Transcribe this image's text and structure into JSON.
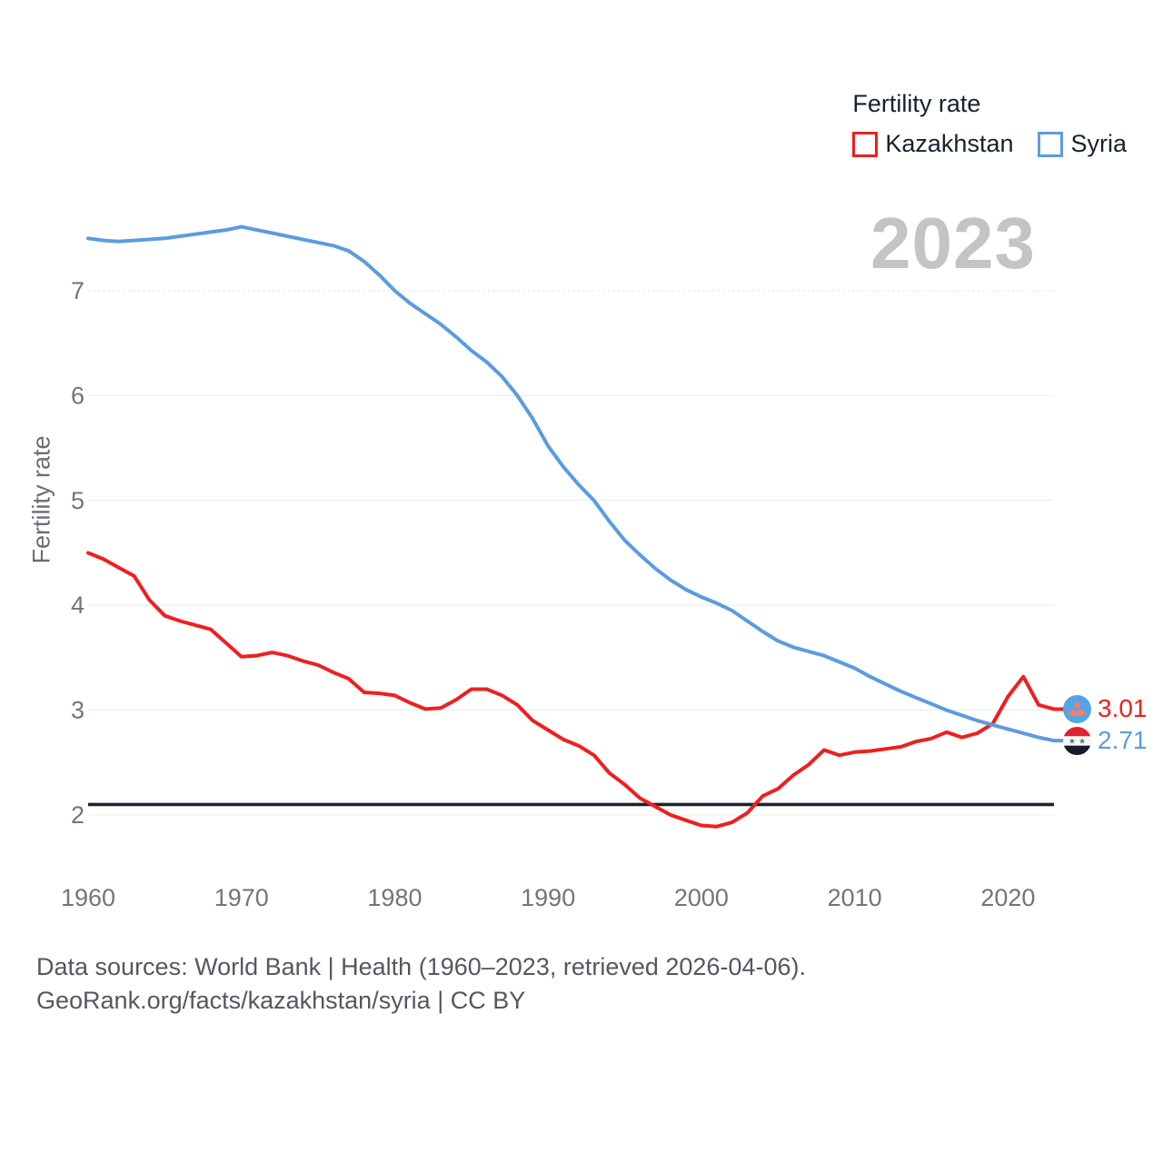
{
  "legend": {
    "title": "Fertility rate"
  },
  "footer": {
    "line1": "Data sources: World Bank | Health (1960–2023, retrieved 2026-04-06).",
    "line2": "GeoRank.org/facts/kazakhstan/syria | CC BY"
  },
  "chart_data": {
    "type": "line",
    "title": "Fertility rate",
    "ylabel": "Fertility rate",
    "watermark_year": "2023",
    "xlim": [
      1960,
      2023
    ],
    "ylim": [
      1.85,
      7.8
    ],
    "x_ticks": [
      1960,
      1970,
      1980,
      1990,
      2000,
      2010,
      2020
    ],
    "y_ticks": [
      2,
      3,
      4,
      5,
      6,
      7
    ],
    "grid": "horizontal",
    "legend_position": "top-right",
    "reference_line": {
      "value": 2.1,
      "color": "#1b2430"
    },
    "x_start": 1960,
    "x_step": 1,
    "series": [
      {
        "name": "Kazakhstan",
        "color": "#ef1f1f",
        "end_label": "3.01",
        "flag_icon": "kazakhstan-flag",
        "values": [
          4.5,
          4.44,
          4.36,
          4.28,
          4.05,
          3.9,
          3.85,
          3.81,
          3.77,
          3.64,
          3.51,
          3.52,
          3.55,
          3.52,
          3.47,
          3.43,
          3.36,
          3.3,
          3.17,
          3.16,
          3.14,
          3.07,
          3.01,
          3.02,
          3.1,
          3.2,
          3.2,
          3.14,
          3.05,
          2.9,
          2.81,
          2.72,
          2.66,
          2.57,
          2.4,
          2.29,
          2.16,
          2.08,
          2.0,
          1.95,
          1.9,
          1.89,
          1.93,
          2.02,
          2.18,
          2.25,
          2.38,
          2.48,
          2.62,
          2.57,
          2.6,
          2.61,
          2.63,
          2.65,
          2.7,
          2.73,
          2.79,
          2.74,
          2.78,
          2.87,
          3.13,
          3.32,
          3.05,
          3.01
        ]
      },
      {
        "name": "Syria",
        "color": "#5b9ce0",
        "end_label": "2.71",
        "flag_icon": "syria-flag",
        "values": [
          7.5,
          7.48,
          7.47,
          7.48,
          7.49,
          7.5,
          7.52,
          7.54,
          7.56,
          7.58,
          7.61,
          7.58,
          7.55,
          7.52,
          7.49,
          7.46,
          7.43,
          7.38,
          7.28,
          7.15,
          7.0,
          6.88,
          6.78,
          6.68,
          6.56,
          6.43,
          6.32,
          6.18,
          6.0,
          5.78,
          5.52,
          5.32,
          5.15,
          5.0,
          4.8,
          4.62,
          4.48,
          4.35,
          4.24,
          4.15,
          4.08,
          4.02,
          3.95,
          3.85,
          3.75,
          3.66,
          3.6,
          3.56,
          3.52,
          3.46,
          3.4,
          3.32,
          3.25,
          3.18,
          3.12,
          3.06,
          3.0,
          2.95,
          2.9,
          2.86,
          2.82,
          2.78,
          2.74,
          2.71
        ]
      }
    ]
  }
}
